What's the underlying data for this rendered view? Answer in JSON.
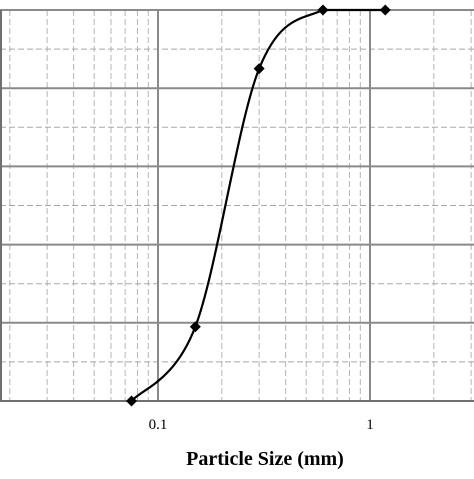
{
  "chart_data": {
    "type": "scatter",
    "title": "",
    "xlabel": "Particle Size (mm)",
    "ylabel": "",
    "x_scale": "log",
    "xlim": [
      0.01,
      10
    ],
    "ylim": [
      0,
      100
    ],
    "x_tick_labels": [
      {
        "value": 0.1,
        "label": "0.1"
      },
      {
        "value": 1,
        "label": "1"
      }
    ],
    "y_major_gridlines": [
      0,
      20,
      40,
      60,
      80,
      100
    ],
    "y_minor_gridlines": [
      10,
      30,
      50,
      70,
      90
    ],
    "grid": true,
    "legend": "none",
    "series": [
      {
        "line": "smooth",
        "marker": "diamond",
        "color": "#000000",
        "points": [
          {
            "x": 0.075,
            "y": 0
          },
          {
            "x": 0.15,
            "y": 19
          },
          {
            "x": 0.3,
            "y": 85
          },
          {
            "x": 0.6,
            "y": 100
          },
          {
            "x": 1.18,
            "y": 100
          }
        ]
      }
    ]
  }
}
